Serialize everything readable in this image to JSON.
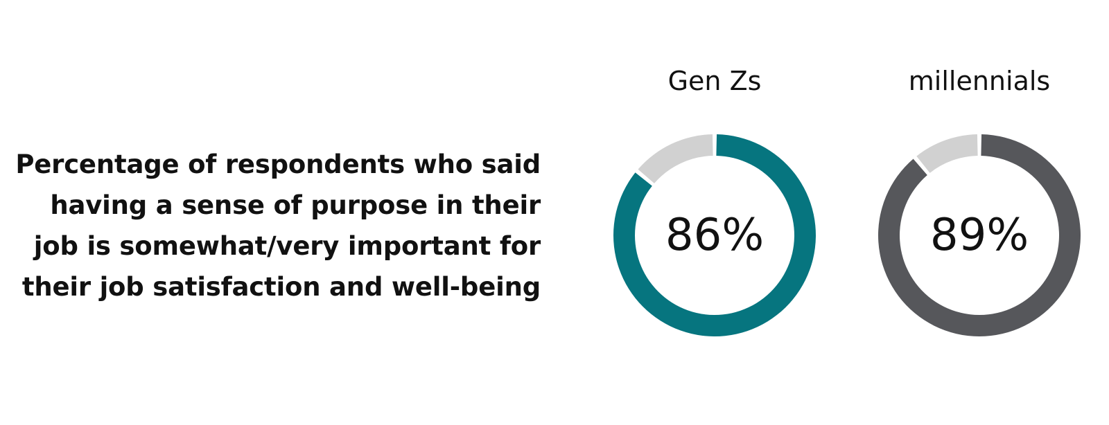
{
  "description": "Percentage of respondents who said having a sense of purpose in their job is somewhat/very important for their job satisfaction and well-being",
  "chart_data": [
    {
      "type": "pie",
      "variant": "donut",
      "title": "Gen Zs",
      "value": 86,
      "value_label": "86%",
      "colors": {
        "value": "#06757F",
        "remainder": "#D1D1D1"
      }
    },
    {
      "type": "pie",
      "variant": "donut",
      "title": "millennials",
      "value": 89,
      "value_label": "89%",
      "colors": {
        "value": "#56575B",
        "remainder": "#D1D1D1"
      }
    }
  ]
}
